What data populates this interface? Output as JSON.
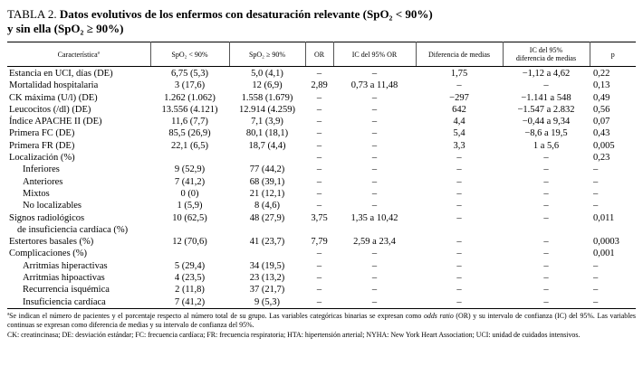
{
  "title": {
    "label": "TABLA 2.",
    "line1": "Datos evolutivos de los enfermos con desaturación relevante (SpO₂ < 90%)",
    "line2": "y sin ella (SpO₂ ≥ 90%)"
  },
  "table": {
    "header": {
      "caracteristica": "Característica",
      "caracteristica_sup": "a",
      "spo2_lt": "SpO₂ < 90%",
      "spo2_ge": "SpO₂ ≥ 90%",
      "or": "OR",
      "ic_or": "IC del 95% OR",
      "dif": "Diferencia de medias",
      "ic_dif_line1": "IC del 95%",
      "ic_dif_line2": "diferencia de medias",
      "p": "p"
    },
    "rows": [
      {
        "label": "Estancia en UCI, días (DE)",
        "indent": false,
        "c1": "6,75 (5,3)",
        "c2": "5,0 (4,1)",
        "or": "–",
        "ic_or": "–",
        "dif": "1,75",
        "ic_dif": "−1,12 a 4,62",
        "p": "0,22"
      },
      {
        "label": "Mortalidad hospitalaria",
        "indent": false,
        "c1": "3 (17,6)",
        "c2": "12 (6,9)",
        "or": "2,89",
        "ic_or": "0,73 a 11,48",
        "dif": "–",
        "ic_dif": "–",
        "p": "0,13"
      },
      {
        "label": "CK máxima (U/l) (DE)",
        "indent": false,
        "c1": "1.262 (1.062)",
        "c2": "1.558 (1.679)",
        "or": "–",
        "ic_or": "–",
        "dif": "−297",
        "ic_dif": "−1.141 a 548",
        "p": "0,49"
      },
      {
        "label": "Leucocitos (/dl) (DE)",
        "indent": false,
        "c1": "13.556 (4.121)",
        "c2": "12.914 (4.259)",
        "or": "–",
        "ic_or": "–",
        "dif": "642",
        "ic_dif": "−1.547 a 2.832",
        "p": "0,56"
      },
      {
        "label": "Índice APACHE II (DE)",
        "indent": false,
        "c1": "11,6 (7,7)",
        "c2": "7,1 (3,9)",
        "or": "–",
        "ic_or": "–",
        "dif": "4,4",
        "ic_dif": "−0,44 a 9,34",
        "p": "0,07"
      },
      {
        "label": "Primera FC (DE)",
        "indent": false,
        "c1": "85,5 (26,9)",
        "c2": "80,1 (18,1)",
        "or": "–",
        "ic_or": "–",
        "dif": "5,4",
        "ic_dif": "−8,6 a 19,5",
        "p": "0,43"
      },
      {
        "label": "Primera FR (DE)",
        "indent": false,
        "c1": "22,1 (6,5)",
        "c2": "18,7 (4,4)",
        "or": "–",
        "ic_or": "–",
        "dif": "3,3",
        "ic_dif": "1 a 5,6",
        "p": "0,005"
      },
      {
        "label": "Localización (%)",
        "indent": false,
        "c1": "",
        "c2": "",
        "or": "–",
        "ic_or": "–",
        "dif": "–",
        "ic_dif": "–",
        "p": "0,23"
      },
      {
        "label": "Inferiores",
        "indent": true,
        "c1": "9 (52,9)",
        "c2": "77 (44,2)",
        "or": "–",
        "ic_or": "–",
        "dif": "–",
        "ic_dif": "–",
        "p": "–"
      },
      {
        "label": "Anteriores",
        "indent": true,
        "c1": "7 (41,2)",
        "c2": "68 (39,1)",
        "or": "–",
        "ic_or": "–",
        "dif": "–",
        "ic_dif": "–",
        "p": "–"
      },
      {
        "label": "Mixtos",
        "indent": true,
        "c1": "0 (0)",
        "c2": "21 (12,1)",
        "or": "–",
        "ic_or": "–",
        "dif": "–",
        "ic_dif": "–",
        "p": "–"
      },
      {
        "label": "No localizables",
        "indent": true,
        "c1": "1 (5,9)",
        "c2": "8 (4,6)",
        "or": "–",
        "ic_or": "–",
        "dif": "–",
        "ic_dif": "–",
        "p": "–"
      },
      {
        "label": "Signos radiológicos",
        "label2": "de insuficiencia cardíaca (%)",
        "indent": false,
        "c1": "10 (62,5)",
        "c2": "48 (27,9)",
        "or": "3,75",
        "ic_or": "1,35 a 10,42",
        "dif": "–",
        "ic_dif": "–",
        "p": "0,011"
      },
      {
        "label": "Estertores basales (%)",
        "indent": false,
        "c1": "12 (70,6)",
        "c2": "41 (23,7)",
        "or": "7,79",
        "ic_or": "2,59 a 23,4",
        "dif": "–",
        "ic_dif": "–",
        "p": "0,0003"
      },
      {
        "label": "Complicaciones (%)",
        "indent": false,
        "c1": "",
        "c2": "",
        "or": "–",
        "ic_or": "–",
        "dif": "–",
        "ic_dif": "–",
        "p": "0,001"
      },
      {
        "label": "Arritmias hiperactivas",
        "indent": true,
        "c1": "5 (29,4)",
        "c2": "34 (19,5)",
        "or": "–",
        "ic_or": "–",
        "dif": "–",
        "ic_dif": "–",
        "p": "–"
      },
      {
        "label": "Arritmias hipoactivas",
        "indent": true,
        "c1": "4 (23,5)",
        "c2": "23 (13,2)",
        "or": "–",
        "ic_or": "–",
        "dif": "–",
        "ic_dif": "–",
        "p": "–"
      },
      {
        "label": "Recurrencia isquémica",
        "indent": true,
        "c1": "2 (11,8)",
        "c2": "37 (21,7)",
        "or": "–",
        "ic_or": "–",
        "dif": "–",
        "ic_dif": "–",
        "p": "–"
      },
      {
        "label": "Insuficiencia cardíaca",
        "indent": true,
        "c1": "7 (41,2)",
        "c2": "9 (5,3)",
        "or": "–",
        "ic_or": "–",
        "dif": "–",
        "ic_dif": "–",
        "p": "–"
      }
    ]
  },
  "footnotes": {
    "note_a_sup": "a",
    "note_a_pre": "Se indican el número de pacientes y el porcentaje respecto al número total de su grupo. Las variables categóricas binarias se expresan como ",
    "note_a_italic": "odds ratio",
    "note_a_post": " (OR) y su intervalo de confianza (IC) del 95%. Las variables continuas se expresan como diferencia de medias y su intervalo de confianza del 95%.",
    "abbreviations": "CK: creatincinasa; DE: desviación estándar; FC: frecuencia cardíaca; FR: frecuencia respiratoria; HTA: hipertensión arterial; NYHA: New York Heart Association; UCI: unidad de cuidados intensivos."
  }
}
